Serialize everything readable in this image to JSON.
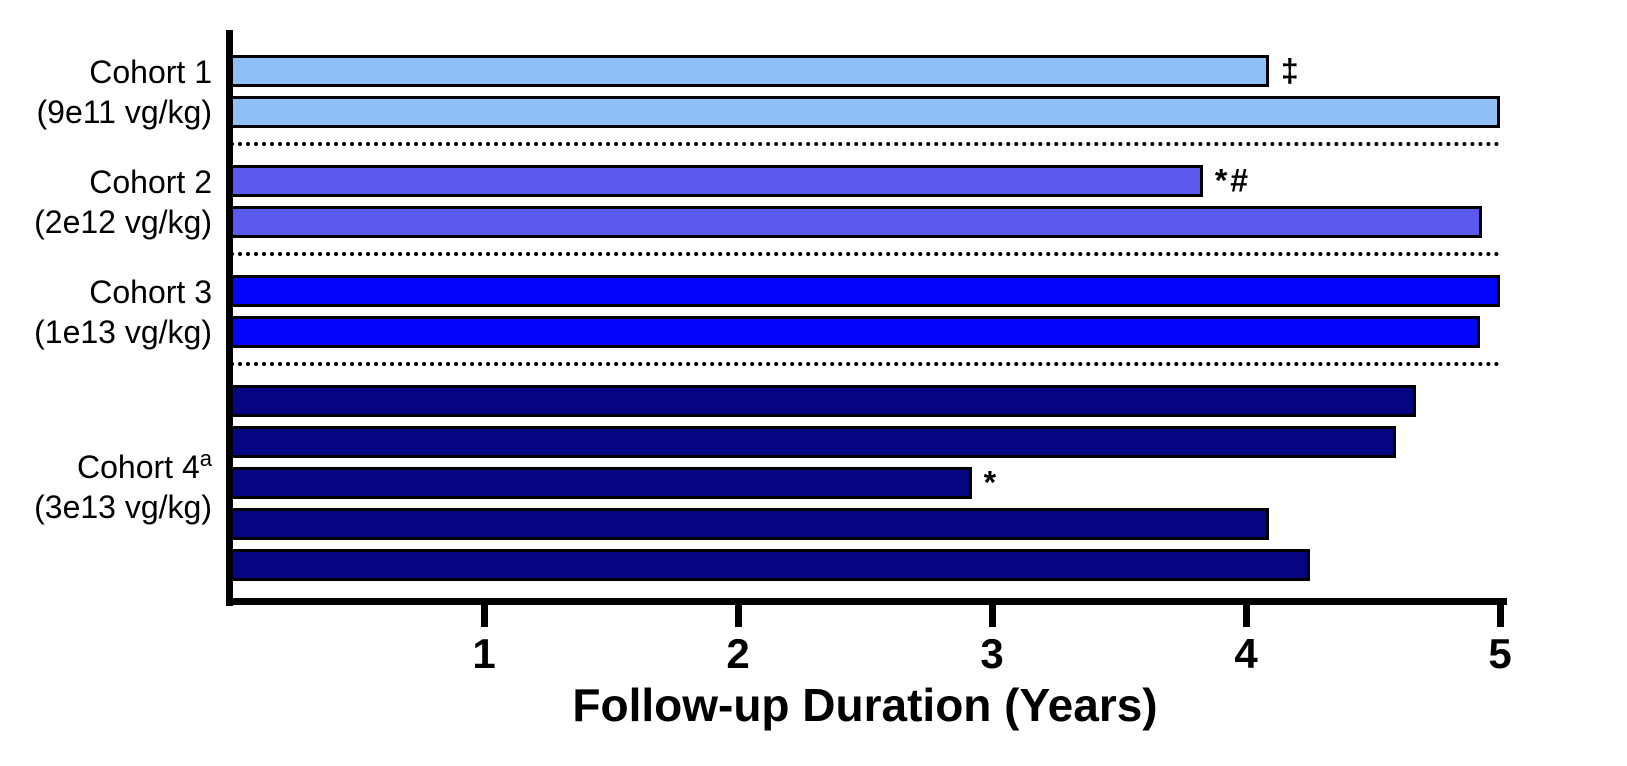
{
  "chart_data": {
    "type": "bar",
    "orientation": "horizontal",
    "xlabel": "Follow-up Duration (Years)",
    "xlim": [
      0,
      5
    ],
    "xticks": [
      "1",
      "2",
      "3",
      "4",
      "5"
    ],
    "grid": false,
    "legend": "none",
    "bar_border_color": "#000000",
    "separator_style": "dotted",
    "cohorts": [
      {
        "name": "Cohort 1",
        "superscript": "",
        "dose": "(9e11 vg/kg)",
        "color": "#8FBFF7",
        "bars": [
          {
            "value": 4.09,
            "annotation": "‡"
          },
          {
            "value": 5.0,
            "annotation": ""
          }
        ]
      },
      {
        "name": "Cohort 2",
        "superscript": "",
        "dose": "(2e12 vg/kg)",
        "color": "#5A5AF0",
        "bars": [
          {
            "value": 3.83,
            "annotation": "*#"
          },
          {
            "value": 4.93,
            "annotation": ""
          }
        ]
      },
      {
        "name": "Cohort 3",
        "superscript": "",
        "dose": "(1e13 vg/kg)",
        "color": "#0505FC",
        "bars": [
          {
            "value": 5.0,
            "annotation": ""
          },
          {
            "value": 4.92,
            "annotation": ""
          }
        ]
      },
      {
        "name": "Cohort 4",
        "superscript": "a",
        "dose": "(3e13 vg/kg)",
        "color": "#050582",
        "bars": [
          {
            "value": 4.67,
            "annotation": ""
          },
          {
            "value": 4.59,
            "annotation": ""
          },
          {
            "value": 2.92,
            "annotation": "*"
          },
          {
            "value": 4.09,
            "annotation": ""
          },
          {
            "value": 4.25,
            "annotation": ""
          }
        ]
      }
    ]
  }
}
